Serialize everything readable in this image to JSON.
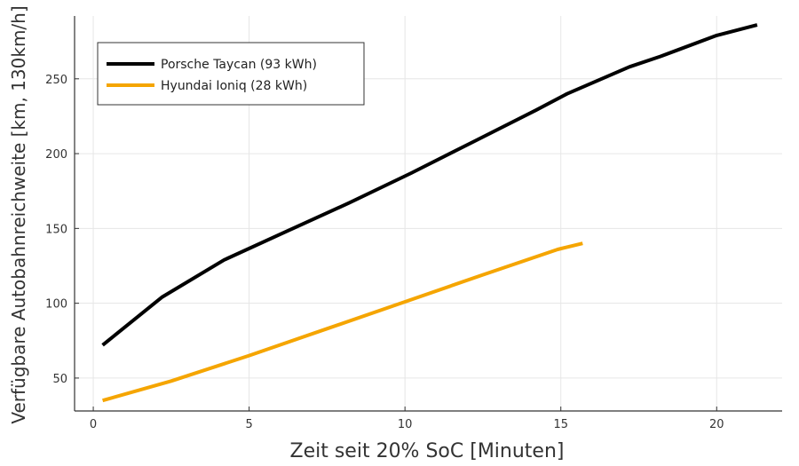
{
  "chart_data": {
    "type": "line",
    "xlabel": "Zeit seit 20% SoC [Minuten]",
    "ylabel": "Verfügbare Autobahnreichweite [km, 130km/h]",
    "xlim": [
      -0.6,
      22.1
    ],
    "ylim": [
      28,
      292
    ],
    "xticks": [
      0,
      5,
      10,
      15,
      20
    ],
    "yticks": [
      50,
      100,
      150,
      200,
      250
    ],
    "xtick_labels": [
      "0",
      "5",
      "10",
      "15",
      "20"
    ],
    "ytick_labels": [
      "50",
      "100",
      "150",
      "200",
      "250"
    ],
    "grid": true,
    "legend_position": "top-left",
    "series": [
      {
        "name": "Porsche Taycan (93 kWh)",
        "color": "#000000",
        "x": [
          0.3,
          2.2,
          4.2,
          6.2,
          8.2,
          10.2,
          12.2,
          14.2,
          15.2,
          17.2,
          18.2,
          20.0,
          21.3
        ],
        "y": [
          72,
          104,
          129,
          148,
          167,
          187,
          208,
          229,
          240,
          258,
          265,
          279,
          286
        ]
      },
      {
        "name": "Hyundai Ioniq (28 kWh)",
        "color": "#f5a500",
        "x": [
          0.3,
          2.5,
          5.0,
          7.5,
          10.0,
          12.5,
          14.9,
          15.7
        ],
        "y": [
          35,
          48,
          65,
          83,
          101,
          119,
          136,
          140
        ]
      }
    ]
  }
}
